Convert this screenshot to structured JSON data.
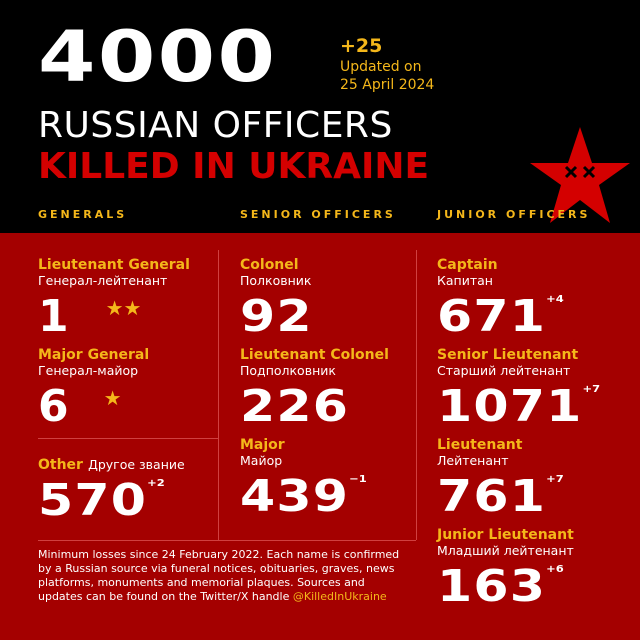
{
  "header": {
    "total": "4000",
    "delta": "+25",
    "updated_line1": "Updated on",
    "updated_line2": "25 April 2024",
    "title_line1": "RUSSIAN OFFICERS",
    "title_line2": "KILLED IN UKRAINE"
  },
  "sections": {
    "generals": "GENERALS",
    "senior": "SENIOR OFFICERS",
    "junior": "JUNIOR OFFICERS"
  },
  "generals": [
    {
      "rank": "Lieutenant General",
      "ru": "Генерал-лейтенант",
      "count": "1",
      "stars": 2
    },
    {
      "rank": "Major General",
      "ru": "Генерал-майор",
      "count": "6",
      "stars": 1
    },
    {
      "rank": "Other",
      "ru": "Другое звание",
      "count": "570",
      "delta": "+2"
    }
  ],
  "senior": [
    {
      "rank": "Colonel",
      "ru": "Полковник",
      "count": "92"
    },
    {
      "rank": "Lieutenant Colonel",
      "ru": "Подполковник",
      "count": "226"
    },
    {
      "rank": "Major",
      "ru": "Майор",
      "count": "439",
      "delta": "−1"
    }
  ],
  "junior": [
    {
      "rank": "Captain",
      "ru": "Капитан",
      "count": "671",
      "delta": "+4"
    },
    {
      "rank": "Senior Lieutenant",
      "ru": "Старший лейтенант",
      "count": "1071",
      "delta": "+7"
    },
    {
      "rank": "Lieutenant",
      "ru": "Лейтенант",
      "count": "761",
      "delta": "+7"
    },
    {
      "rank": "Junior Lieutenant",
      "ru": "Младший лейтенант",
      "count": "163",
      "delta": "+6"
    }
  ],
  "footer": {
    "text": "Minimum losses since 24 February 2022. Each name is confirmed by a Russian source via funeral notices, obituaries, graves, news platforms, monuments and memorial plaques. Sources and updates can be found on the Twitter/X handle ",
    "handle": "@KilledInUkraine"
  },
  "colors": {
    "background_top": "#000000",
    "background_bottom": "#a40000",
    "accent_yellow": "#f4b71a",
    "accent_red": "#d40000"
  }
}
